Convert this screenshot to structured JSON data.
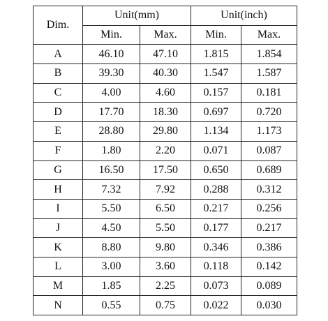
{
  "table": {
    "header": {
      "dim": "Dim.",
      "groups": [
        "Unit(mm)",
        "Unit(inch)"
      ],
      "sub": [
        "Min.",
        "Max.",
        "Min.",
        "Max."
      ]
    },
    "rows": [
      [
        "A",
        "46.10",
        "47.10",
        "1.815",
        "1.854"
      ],
      [
        "B",
        "39.30",
        "40.30",
        "1.547",
        "1.587"
      ],
      [
        "C",
        "4.00",
        "4.60",
        "0.157",
        "0.181"
      ],
      [
        "D",
        "17.70",
        "18.30",
        "0.697",
        "0.720"
      ],
      [
        "E",
        "28.80",
        "29.80",
        "1.134",
        "1.173"
      ],
      [
        "F",
        "1.80",
        "2.20",
        "0.071",
        "0.087"
      ],
      [
        "G",
        "16.50",
        "17.50",
        "0.650",
        "0.689"
      ],
      [
        "H",
        "7.32",
        "7.92",
        "0.288",
        "0.312"
      ],
      [
        "I",
        "5.50",
        "6.50",
        "0.217",
        "0.256"
      ],
      [
        "J",
        "4.50",
        "5.50",
        "0.177",
        "0.217"
      ],
      [
        "K",
        "8.80",
        "9.80",
        "0.346",
        "0.386"
      ],
      [
        "L",
        "3.00",
        "3.60",
        "0.118",
        "0.142"
      ],
      [
        "M",
        "1.85",
        "2.25",
        "0.073",
        "0.089"
      ],
      [
        "N",
        "0.55",
        "0.75",
        "0.022",
        "0.030"
      ]
    ]
  }
}
